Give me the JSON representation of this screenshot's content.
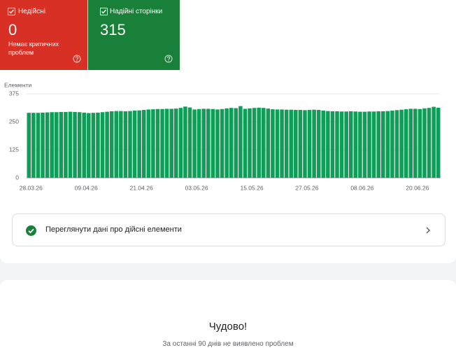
{
  "cards": [
    {
      "label": "Недійсні",
      "value": "0",
      "note": "Немає критичних проблем",
      "color": "#d93025"
    },
    {
      "label": "Надійні сторінки",
      "value": "315",
      "color": "#188038"
    }
  ],
  "chart_data": {
    "type": "bar",
    "y_label": "Елементи",
    "color": "#0f9d58",
    "categories": [
      "28.03.26",
      null,
      null,
      null,
      null,
      null,
      null,
      null,
      null,
      null,
      null,
      null,
      "09.04.26",
      null,
      null,
      null,
      null,
      null,
      null,
      null,
      null,
      null,
      null,
      null,
      "21.04.26",
      null,
      null,
      null,
      null,
      null,
      null,
      null,
      null,
      null,
      null,
      null,
      "03.05.26",
      null,
      null,
      null,
      null,
      null,
      null,
      null,
      null,
      null,
      null,
      null,
      "15.05.26",
      null,
      null,
      null,
      null,
      null,
      null,
      null,
      null,
      null,
      null,
      null,
      "27.05.26",
      null,
      null,
      null,
      null,
      null,
      null,
      null,
      null,
      null,
      null,
      null,
      "08.06.26",
      null,
      null,
      null,
      null,
      null,
      null,
      null,
      null,
      null,
      null,
      null,
      "20.06.26",
      null,
      null,
      null,
      null,
      null
    ],
    "values": [
      290,
      290,
      290,
      291,
      292,
      293,
      293,
      294,
      294,
      295,
      294,
      293,
      291,
      289,
      290,
      291,
      293,
      295,
      297,
      298,
      298,
      297,
      298,
      300,
      301,
      303,
      305,
      306,
      307,
      307,
      308,
      308,
      309,
      312,
      318,
      314,
      305,
      307,
      308,
      308,
      307,
      305,
      307,
      310,
      312,
      311,
      320,
      308,
      310,
      312,
      313,
      312,
      309,
      306,
      305,
      305,
      304,
      304,
      303,
      303,
      302,
      303,
      304,
      303,
      300,
      298,
      297,
      297,
      296,
      296,
      297,
      296,
      295,
      295,
      296,
      296,
      297,
      297,
      298,
      300,
      302,
      304,
      306,
      308,
      308,
      307,
      310,
      312,
      317,
      313
    ],
    "ylim": [
      0,
      375
    ],
    "yticks": [
      0,
      125,
      250,
      375
    ],
    "grid": true
  },
  "link": {
    "label": "Переглянути дані про дійсні елементи"
  },
  "summary": {
    "title": "Чудово!",
    "text": "За останні 90 днів не виявлено проблем"
  }
}
